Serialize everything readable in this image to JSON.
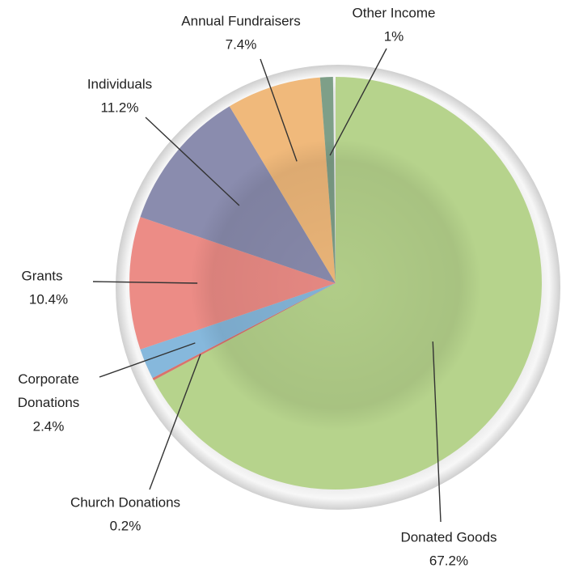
{
  "chart_data": {
    "type": "pie",
    "categories": [
      "Donated Goods",
      "Church Donations",
      "Corporate Donations",
      "Grants",
      "Individuals",
      "Annual Fundraisers",
      "Other Income"
    ],
    "values": [
      67.2,
      0.2,
      2.4,
      10.4,
      11.2,
      7.4,
      1
    ],
    "value_labels": [
      "67.2%",
      "0.2%",
      "2.4%",
      "10.4%",
      "11.2%",
      "7.4%",
      "1%"
    ],
    "colors": [
      "#b6d38c",
      "#d9736c",
      "#86b8dc",
      "#ec8c86",
      "#8a8cae",
      "#f0b97b",
      "#7e9f88"
    ]
  }
}
